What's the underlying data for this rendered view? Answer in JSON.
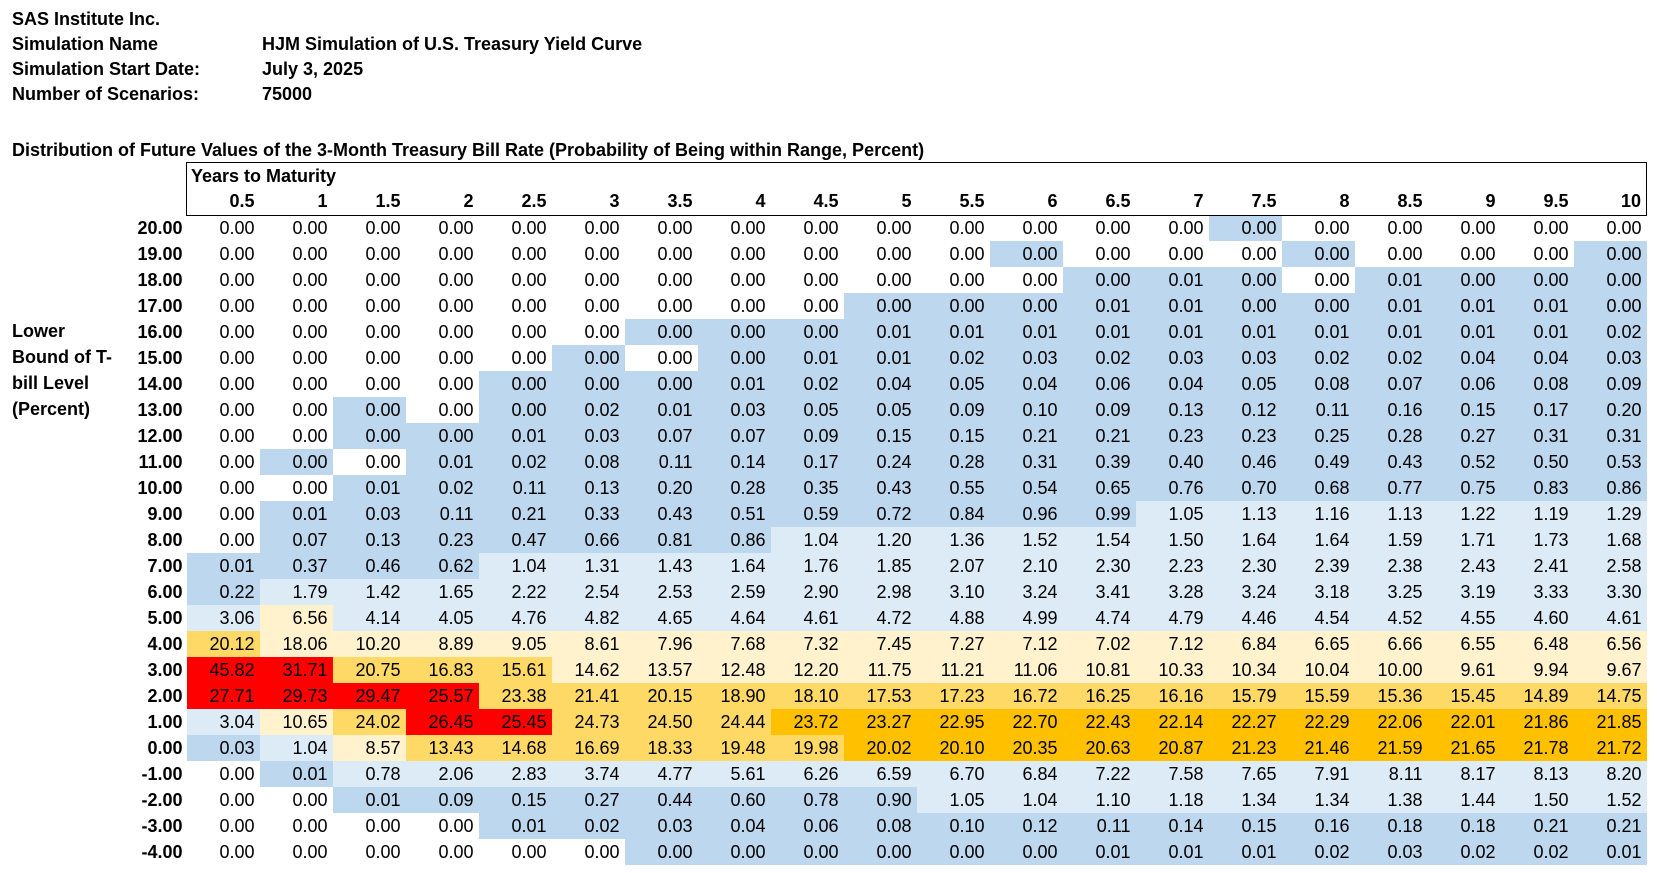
{
  "header": {
    "company": "SAS Institute Inc.",
    "simulation_name_label": "Simulation Name",
    "simulation_name": "HJM Simulation of U.S. Treasury Yield Curve",
    "start_date_label": "Simulation Start Date:",
    "start_date": "July 3, 2025",
    "scenarios_label": "Number of Scenarios:",
    "scenarios": "75000"
  },
  "chart_data": {
    "type": "heatmap",
    "title": "Distribution of Future Values of the 3-Month Treasury Bill Rate (Probability of Being within Range, Percent)",
    "xlabel": "Years to Maturity",
    "ylabel": "Lower Bound of T-bill Level (Percent)",
    "x": [
      "0.5",
      "1",
      "1.5",
      "2",
      "2.5",
      "3",
      "3.5",
      "4",
      "4.5",
      "5",
      "5.5",
      "6",
      "6.5",
      "7",
      "7.5",
      "8",
      "8.5",
      "9",
      "9.5",
      "10"
    ],
    "y": [
      "20.00",
      "19.00",
      "18.00",
      "17.00",
      "16.00",
      "15.00",
      "14.00",
      "13.00",
      "12.00",
      "11.00",
      "10.00",
      "9.00",
      "8.00",
      "7.00",
      "6.00",
      "5.00",
      "4.00",
      "3.00",
      "2.00",
      "1.00",
      "0.00",
      "-1.00",
      "-2.00",
      "-3.00",
      "-4.00"
    ],
    "values": [
      [
        "0.00",
        "0.00",
        "0.00",
        "0.00",
        "0.00",
        "0.00",
        "0.00",
        "0.00",
        "0.00",
        "0.00",
        "0.00",
        "0.00",
        "0.00",
        "0.00",
        "0.00",
        "0.00",
        "0.00",
        "0.00",
        "0.00",
        "0.00"
      ],
      [
        "0.00",
        "0.00",
        "0.00",
        "0.00",
        "0.00",
        "0.00",
        "0.00",
        "0.00",
        "0.00",
        "0.00",
        "0.00",
        "0.00",
        "0.00",
        "0.00",
        "0.00",
        "0.00",
        "0.00",
        "0.00",
        "0.00",
        "0.00"
      ],
      [
        "0.00",
        "0.00",
        "0.00",
        "0.00",
        "0.00",
        "0.00",
        "0.00",
        "0.00",
        "0.00",
        "0.00",
        "0.00",
        "0.00",
        "0.00",
        "0.01",
        "0.00",
        "0.00",
        "0.01",
        "0.00",
        "0.00",
        "0.00"
      ],
      [
        "0.00",
        "0.00",
        "0.00",
        "0.00",
        "0.00",
        "0.00",
        "0.00",
        "0.00",
        "0.00",
        "0.00",
        "0.00",
        "0.00",
        "0.01",
        "0.01",
        "0.00",
        "0.00",
        "0.01",
        "0.01",
        "0.01",
        "0.00"
      ],
      [
        "0.00",
        "0.00",
        "0.00",
        "0.00",
        "0.00",
        "0.00",
        "0.00",
        "0.00",
        "0.00",
        "0.01",
        "0.01",
        "0.01",
        "0.01",
        "0.01",
        "0.01",
        "0.01",
        "0.01",
        "0.01",
        "0.01",
        "0.02"
      ],
      [
        "0.00",
        "0.00",
        "0.00",
        "0.00",
        "0.00",
        "0.00",
        "0.00",
        "0.00",
        "0.01",
        "0.01",
        "0.02",
        "0.03",
        "0.02",
        "0.03",
        "0.03",
        "0.02",
        "0.02",
        "0.04",
        "0.04",
        "0.03"
      ],
      [
        "0.00",
        "0.00",
        "0.00",
        "0.00",
        "0.00",
        "0.00",
        "0.00",
        "0.01",
        "0.02",
        "0.04",
        "0.05",
        "0.04",
        "0.06",
        "0.04",
        "0.05",
        "0.08",
        "0.07",
        "0.06",
        "0.08",
        "0.09"
      ],
      [
        "0.00",
        "0.00",
        "0.00",
        "0.00",
        "0.00",
        "0.02",
        "0.01",
        "0.03",
        "0.05",
        "0.05",
        "0.09",
        "0.10",
        "0.09",
        "0.13",
        "0.12",
        "0.11",
        "0.16",
        "0.15",
        "0.17",
        "0.20"
      ],
      [
        "0.00",
        "0.00",
        "0.00",
        "0.00",
        "0.01",
        "0.03",
        "0.07",
        "0.07",
        "0.09",
        "0.15",
        "0.15",
        "0.21",
        "0.21",
        "0.23",
        "0.23",
        "0.25",
        "0.28",
        "0.27",
        "0.31",
        "0.31"
      ],
      [
        "0.00",
        "0.00",
        "0.00",
        "0.01",
        "0.02",
        "0.08",
        "0.11",
        "0.14",
        "0.17",
        "0.24",
        "0.28",
        "0.31",
        "0.39",
        "0.40",
        "0.46",
        "0.49",
        "0.43",
        "0.52",
        "0.50",
        "0.53"
      ],
      [
        "0.00",
        "0.00",
        "0.01",
        "0.02",
        "0.11",
        "0.13",
        "0.20",
        "0.28",
        "0.35",
        "0.43",
        "0.55",
        "0.54",
        "0.65",
        "0.76",
        "0.70",
        "0.68",
        "0.77",
        "0.75",
        "0.83",
        "0.86"
      ],
      [
        "0.00",
        "0.01",
        "0.03",
        "0.11",
        "0.21",
        "0.33",
        "0.43",
        "0.51",
        "0.59",
        "0.72",
        "0.84",
        "0.96",
        "0.99",
        "1.05",
        "1.13",
        "1.16",
        "1.13",
        "1.22",
        "1.19",
        "1.29"
      ],
      [
        "0.00",
        "0.07",
        "0.13",
        "0.23",
        "0.47",
        "0.66",
        "0.81",
        "0.86",
        "1.04",
        "1.20",
        "1.36",
        "1.52",
        "1.54",
        "1.50",
        "1.64",
        "1.64",
        "1.59",
        "1.71",
        "1.73",
        "1.68"
      ],
      [
        "0.01",
        "0.37",
        "0.46",
        "0.62",
        "1.04",
        "1.31",
        "1.43",
        "1.64",
        "1.76",
        "1.85",
        "2.07",
        "2.10",
        "2.30",
        "2.23",
        "2.30",
        "2.39",
        "2.38",
        "2.43",
        "2.41",
        "2.58"
      ],
      [
        "0.22",
        "1.79",
        "1.42",
        "1.65",
        "2.22",
        "2.54",
        "2.53",
        "2.59",
        "2.90",
        "2.98",
        "3.10",
        "3.24",
        "3.41",
        "3.28",
        "3.24",
        "3.18",
        "3.25",
        "3.19",
        "3.33",
        "3.30"
      ],
      [
        "3.06",
        "6.56",
        "4.14",
        "4.05",
        "4.76",
        "4.82",
        "4.65",
        "4.64",
        "4.61",
        "4.72",
        "4.88",
        "4.99",
        "4.74",
        "4.79",
        "4.46",
        "4.54",
        "4.52",
        "4.55",
        "4.60",
        "4.61"
      ],
      [
        "20.12",
        "18.06",
        "10.20",
        "8.89",
        "9.05",
        "8.61",
        "7.96",
        "7.68",
        "7.32",
        "7.45",
        "7.27",
        "7.12",
        "7.02",
        "7.12",
        "6.84",
        "6.65",
        "6.66",
        "6.55",
        "6.48",
        "6.56"
      ],
      [
        "45.82",
        "31.71",
        "20.75",
        "16.83",
        "15.61",
        "14.62",
        "13.57",
        "12.48",
        "12.20",
        "11.75",
        "11.21",
        "11.06",
        "10.81",
        "10.33",
        "10.34",
        "10.04",
        "10.00",
        "9.61",
        "9.94",
        "9.67"
      ],
      [
        "27.71",
        "29.73",
        "29.47",
        "25.57",
        "23.38",
        "21.41",
        "20.15",
        "18.90",
        "18.10",
        "17.53",
        "17.23",
        "16.72",
        "16.25",
        "16.16",
        "15.79",
        "15.59",
        "15.36",
        "15.45",
        "14.89",
        "14.75"
      ],
      [
        "3.04",
        "10.65",
        "24.02",
        "26.45",
        "25.45",
        "24.73",
        "24.50",
        "24.44",
        "23.72",
        "23.27",
        "22.95",
        "22.70",
        "22.43",
        "22.14",
        "22.27",
        "22.29",
        "22.06",
        "22.01",
        "21.86",
        "21.85"
      ],
      [
        "0.03",
        "1.04",
        "8.57",
        "13.43",
        "14.68",
        "16.69",
        "18.33",
        "19.48",
        "19.98",
        "20.02",
        "20.10",
        "20.35",
        "20.63",
        "20.87",
        "21.23",
        "21.46",
        "21.59",
        "21.65",
        "21.78",
        "21.72"
      ],
      [
        "0.00",
        "0.01",
        "0.78",
        "2.06",
        "2.83",
        "3.74",
        "4.77",
        "5.61",
        "6.26",
        "6.59",
        "6.70",
        "6.84",
        "7.22",
        "7.58",
        "7.65",
        "7.91",
        "8.11",
        "8.17",
        "8.13",
        "8.20"
      ],
      [
        "0.00",
        "0.00",
        "0.01",
        "0.09",
        "0.15",
        "0.27",
        "0.44",
        "0.60",
        "0.78",
        "0.90",
        "1.05",
        "1.04",
        "1.10",
        "1.18",
        "1.34",
        "1.34",
        "1.38",
        "1.44",
        "1.50",
        "1.52"
      ],
      [
        "0.00",
        "0.00",
        "0.00",
        "0.00",
        "0.01",
        "0.02",
        "0.03",
        "0.04",
        "0.06",
        "0.08",
        "0.10",
        "0.12",
        "0.11",
        "0.14",
        "0.15",
        "0.16",
        "0.18",
        "0.18",
        "0.21",
        "0.21"
      ],
      [
        "0.00",
        "0.00",
        "0.00",
        "0.00",
        "0.00",
        "0.00",
        "0.00",
        "0.00",
        "0.00",
        "0.00",
        "0.00",
        "0.00",
        "0.01",
        "0.01",
        "0.01",
        "0.02",
        "0.03",
        "0.02",
        "0.02",
        "0.01"
      ]
    ],
    "cell_classes": [
      "WWWWWWWWWWWWWWBWWWWW",
      "WWWWWWWWWWWBWWWBWWWB",
      "WWWWWWWWWWWWBBBWBBBB",
      "WWWWWWWWWBBBBBBBBBBB",
      "WWWWWWBBBBBBBBBBBBBB",
      "WWWWWBWBBBBBBBBBBBBB",
      "WWWWBBBBBBBBBBBBBBBB",
      "WWBWBBBBBBBBBBBBBBBB",
      "WWBBBBBBBBBBBBBBBBBB",
      "WBWBBBBBBBBBBBBBBBBB",
      "WWBBBBBBBBBBBBBBBBBB",
      "WBBBBBBBBBBBBPPPPPPP",
      "WBBBBBBBPPPPPPPPPPPP",
      "BBBBPPPPPPPPPPPPPPPP",
      "BPPPPPPPPPPPPPPPPPPP",
      "PCPPPPPPPPPPPPPPPPPP",
      "GCCCCCCCCCCCCCCCCCCC",
      "RRGGGCCCCCCCCCCCCCCC",
      "RRRRGGGGGGGGGGGGGGGG",
      "PCGRRGGGOOOOOOOOOOOO",
      "BPCGGGGGGOOOOOOOOOOO",
      "WBPPPPPPPPPPPPPPPPPP",
      "WWBBBBBBBBPPPPPPPPPP",
      "WWWWBBBBBBBBBBBBBBBB",
      "WWWWWWBBBBBBBBBBBBBB"
    ],
    "colors": {
      "R": "#ff0000",
      "O": "#ffc000",
      "G": "#ffd966",
      "C": "#fff2cc",
      "P": "#ddebf7",
      "B": "#bdd7ee",
      "W": "#ffffff"
    }
  }
}
